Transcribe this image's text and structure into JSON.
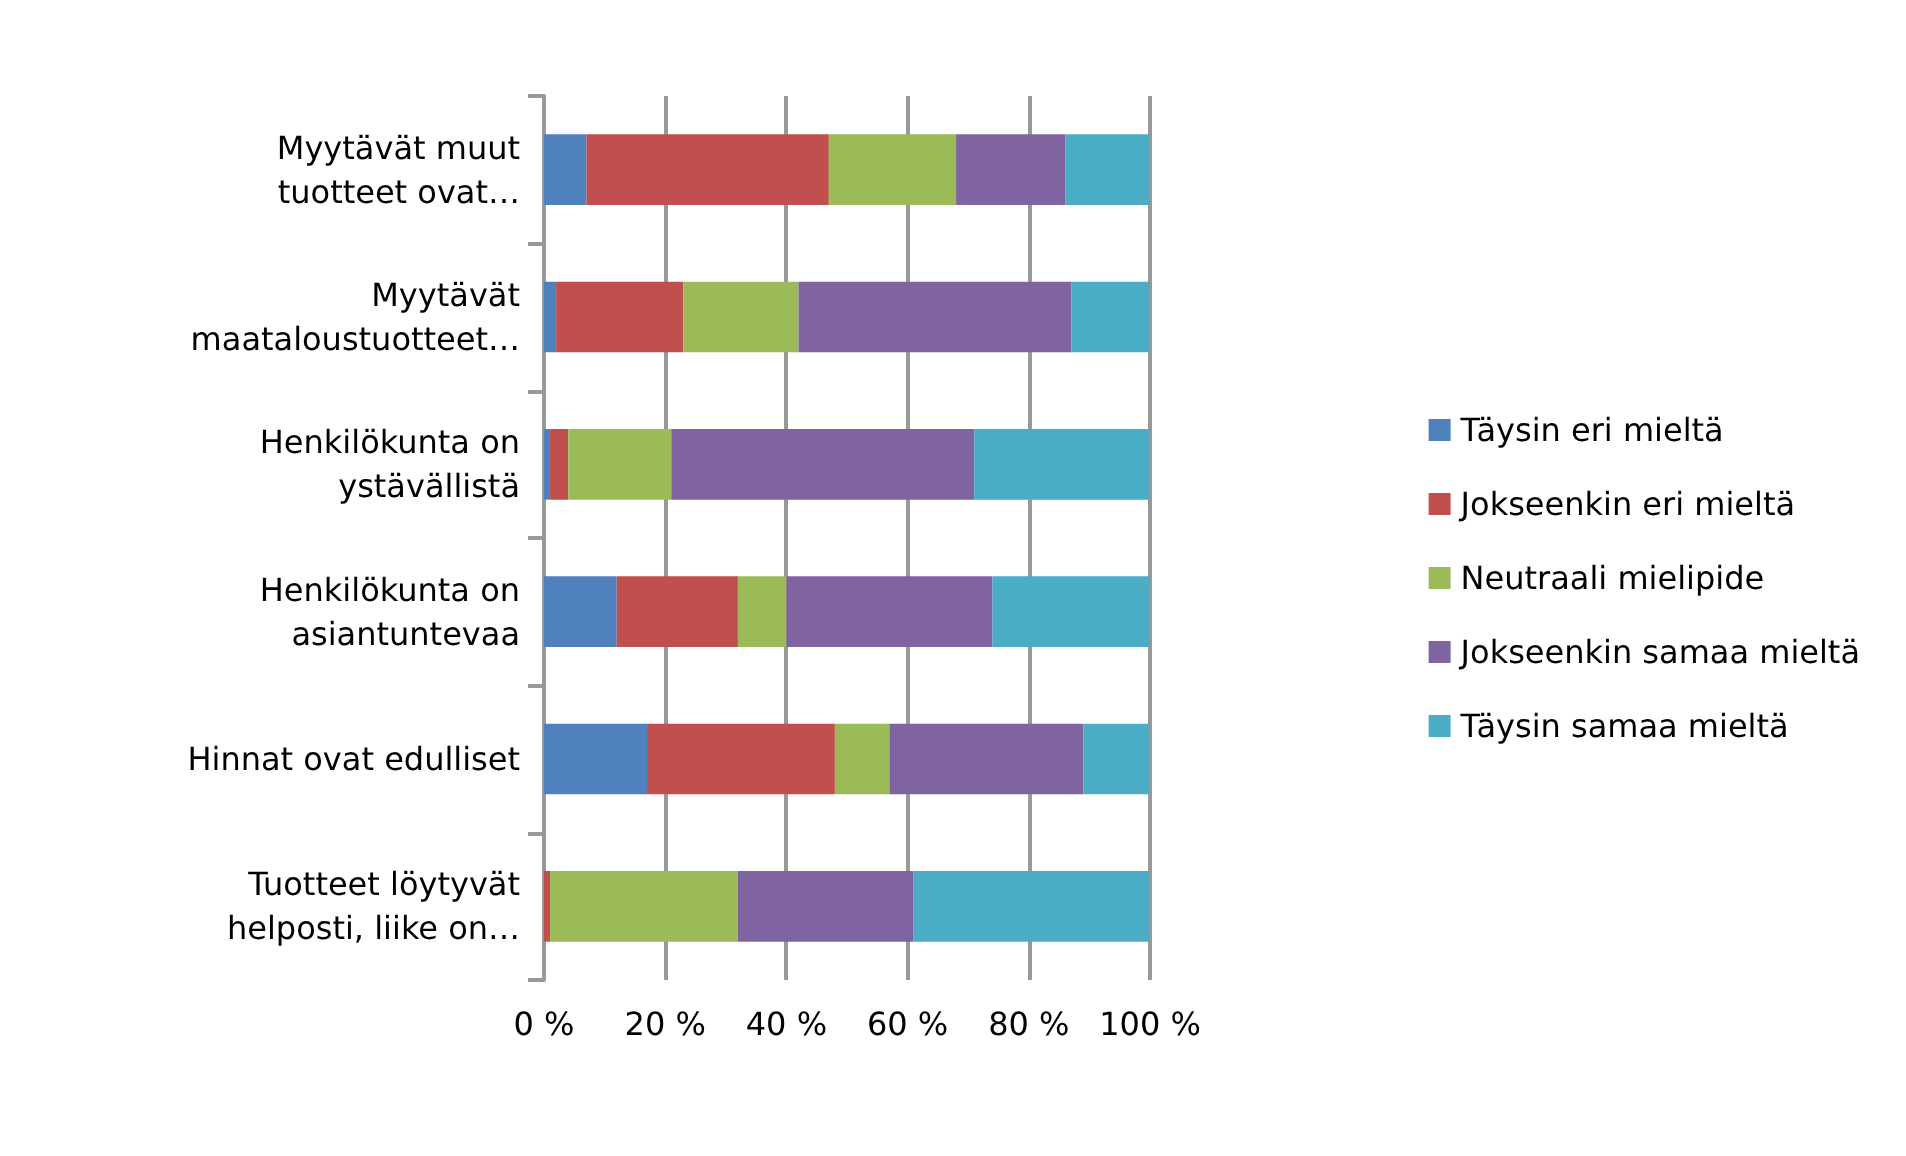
{
  "chart_data": {
    "type": "bar",
    "orientation": "horizontal",
    "stacked": true,
    "categories": [
      "Myytävät muut\ntuotteet ovat…",
      "Myytävät\nmaataloustuotteet…",
      "Henkilökunta on\nystävällistä",
      "Henkilökunta on\nasiantuntevaa",
      "Hinnat ovat edulliset",
      "Tuotteet löytyvät\nhelposti, liike on…"
    ],
    "series": [
      {
        "name": "Täysin eri mieltä",
        "color": "#4f81bd",
        "values": [
          7,
          2,
          1,
          12,
          17,
          0
        ]
      },
      {
        "name": "Jokseenkin eri mieltä",
        "color": "#c0504d",
        "values": [
          40,
          21,
          3,
          20,
          31,
          1
        ]
      },
      {
        "name": "Neutraali mielipide",
        "color": "#9bbb59",
        "values": [
          21,
          19,
          17,
          8,
          9,
          31
        ]
      },
      {
        "name": "Jokseenkin samaa mieltä",
        "color": "#8064a2",
        "values": [
          18,
          45,
          50,
          34,
          32,
          29
        ]
      },
      {
        "name": "Täysin samaa mieltä",
        "color": "#4bacc6",
        "values": [
          14,
          13,
          29,
          26,
          11,
          39
        ]
      }
    ],
    "xlim": [
      0,
      100
    ],
    "xticks": [
      {
        "value": 0,
        "label": "0 %"
      },
      {
        "value": 20,
        "label": "20 %"
      },
      {
        "value": 40,
        "label": "40 %"
      },
      {
        "value": 60,
        "label": "60 %"
      },
      {
        "value": 80,
        "label": "80 %"
      },
      {
        "value": 100,
        "label": "100 %"
      }
    ],
    "grid": "x",
    "legend": "right"
  }
}
